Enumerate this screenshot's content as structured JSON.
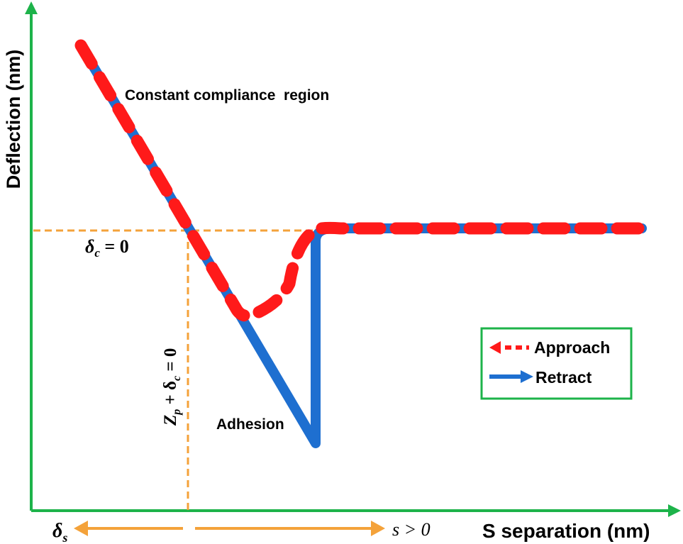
{
  "axes": {
    "ylabel": "Deflection  (nm)",
    "xlabel": "S separation (nm)",
    "color": "#1db34a"
  },
  "annotations": {
    "constant_compliance": "Constant compliance  region",
    "adhesion": "Adhesion",
    "delta_c_zero": {
      "sym": "δ",
      "sub": "c",
      "rest": " = 0"
    },
    "zp_plus_delta": {
      "z": "Z",
      "zsub": "p",
      "mid": " + δ",
      "dsub": "c",
      "rest": " = 0"
    },
    "delta_s": {
      "sym": "δ",
      "sub": "s"
    },
    "s_positive": "s > 0"
  },
  "legend": {
    "items": [
      {
        "label": "Approach",
        "color": "#ff1a1a",
        "style": "dashed"
      },
      {
        "label": "Retract",
        "color": "#1e6fd0",
        "style": "solid"
      }
    ],
    "border_color": "#1db34a"
  },
  "colors": {
    "approach": "#ff1a1a",
    "retract": "#1e6fd0",
    "guide": "#f4a23a",
    "text": "#000000"
  }
}
